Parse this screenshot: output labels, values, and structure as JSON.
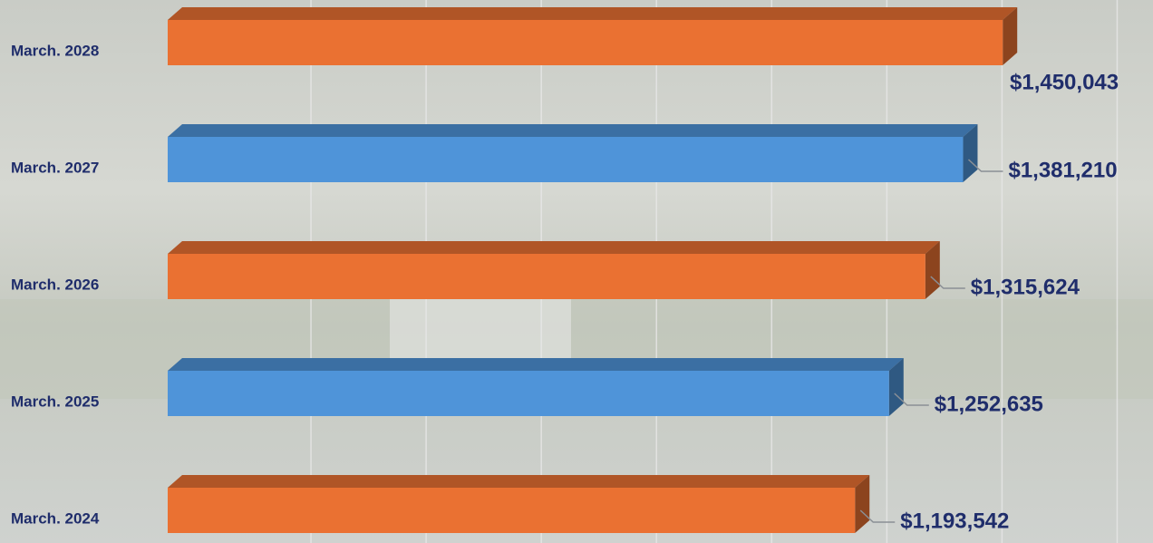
{
  "chart_data": {
    "type": "bar3d",
    "categories": [
      "March. 2028",
      "March. 2027",
      "March. 2026",
      "March. 2025",
      "March. 2024"
    ],
    "values": [
      1450043,
      1381210,
      1315624,
      1252635,
      1193542
    ],
    "value_labels": [
      "$1,450,043",
      "$1,381,210",
      "$1,315,624",
      "$1,252,635",
      "$1,193,542"
    ],
    "colors": [
      "#ea7132",
      "#4f94d9",
      "#ea7132",
      "#4f94d9",
      "#ea7132"
    ],
    "xlim": [
      0,
      1700000
    ],
    "xticks": [
      200000,
      400000,
      600000,
      800000,
      1000000,
      1200000,
      1400000,
      1600000
    ],
    "grid": true
  }
}
